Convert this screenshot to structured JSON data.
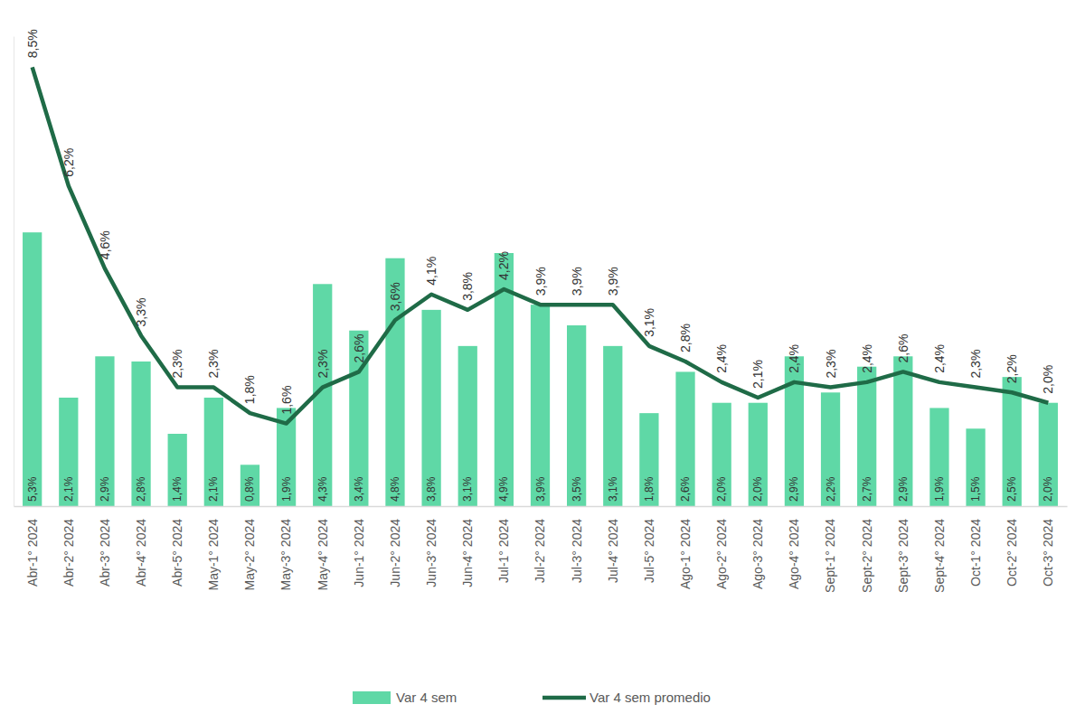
{
  "chart_data": {
    "type": "bar",
    "categories": [
      "Abr-1° 2024",
      "Abr-2° 2024",
      "Abr-3° 2024",
      "Abr-4° 2024",
      "Abr-5° 2024",
      "May-1° 2024",
      "May-2° 2024",
      "May-3° 2024",
      "May-4° 2024",
      "Jun-1° 2024",
      "Jun-2° 2024",
      "Jun-3° 2024",
      "Jun-4° 2024",
      "Jul-1° 2024",
      "Jul-2° 2024",
      "Jul-3° 2024",
      "Jul-4° 2024",
      "Jul-5° 2024",
      "Ago-1° 2024",
      "Ago-2° 2024",
      "Ago-3° 2024",
      "Ago-4° 2024",
      "Sept-1° 2024",
      "Sept-2° 2024",
      "Sept-3° 2024",
      "Sept-4° 2024",
      "Oct-1° 2024",
      "Oct-2° 2024",
      "Oct-3° 2024"
    ],
    "series": [
      {
        "name": "Var 4 sem",
        "type": "bar",
        "color": "#5fd8a6",
        "values": [
          5.3,
          2.1,
          2.9,
          2.8,
          1.4,
          2.1,
          0.8,
          1.9,
          4.3,
          3.4,
          4.8,
          3.8,
          3.1,
          4.9,
          3.9,
          3.5,
          3.1,
          1.8,
          2.6,
          2.0,
          2.0,
          2.9,
          2.2,
          2.7,
          2.9,
          1.9,
          1.5,
          2.5,
          2.0
        ],
        "value_labels": [
          "5,3%",
          "2,1%",
          "2,9%",
          "2,8%",
          "1,4%",
          "2,1%",
          "0,8%",
          "1,9%",
          "4,3%",
          "3,4%",
          "4,8%",
          "3,8%",
          "3,1%",
          "4,9%",
          "3,9%",
          "3,5%",
          "3,1%",
          "1,8%",
          "2,6%",
          "2,0%",
          "2,0%",
          "2,9%",
          "2,2%",
          "2,7%",
          "2,9%",
          "1,9%",
          "1,5%",
          "2,5%",
          "2,0%"
        ]
      },
      {
        "name": "Var 4 sem promedio",
        "type": "line",
        "color": "#1f6b47",
        "values": [
          8.5,
          6.2,
          4.6,
          3.3,
          2.3,
          2.3,
          1.8,
          1.6,
          2.3,
          2.6,
          3.6,
          4.1,
          3.8,
          4.2,
          3.9,
          3.9,
          3.9,
          3.1,
          2.8,
          2.4,
          2.1,
          2.4,
          2.3,
          2.4,
          2.6,
          2.4,
          2.3,
          2.2,
          2.0
        ],
        "value_labels": [
          "8,5%",
          "6,2%",
          "4,6%",
          "3,3%",
          "2,3%",
          "2,3%",
          "1,8%",
          "1,6%",
          "2,3%",
          "2,6%",
          "3,6%",
          "4,1%",
          "3,8%",
          "4,2%",
          "3,9%",
          "3,9%",
          "3,9%",
          "3,1%",
          "2,8%",
          "2,4%",
          "2,1%",
          "2,4%",
          "2,3%",
          "2,4%",
          "2,6%",
          "2,4%",
          "2,3%",
          "2,2%",
          "2,0%"
        ]
      }
    ],
    "ylim": [
      0,
      9.1
    ],
    "yticks": [],
    "tick_labels": "x",
    "data_labels": true,
    "legend": "bottom",
    "grid": false
  }
}
